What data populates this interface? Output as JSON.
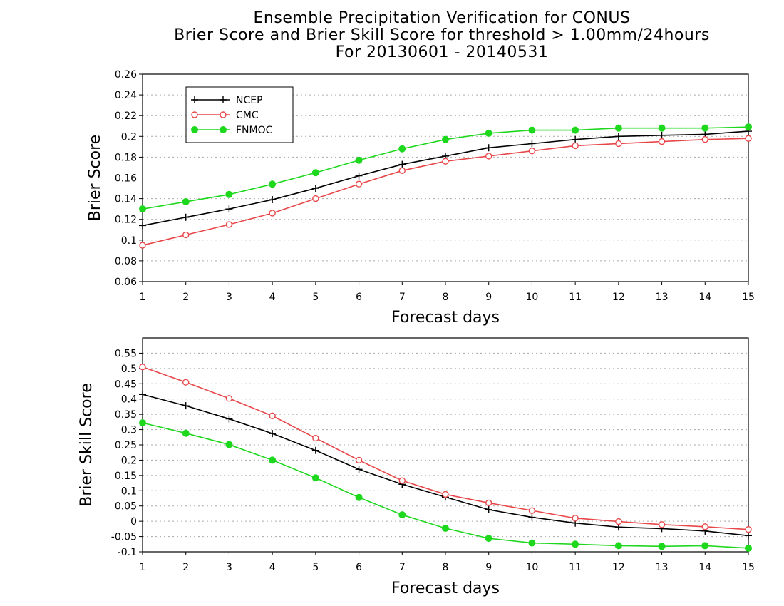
{
  "title": {
    "line1": "Ensemble Precipitation Verification for CONUS",
    "line2": "Brier Score and Brier Skill Score for threshold > 1.00mm/24hours",
    "line3": "For 20130601 - 20140531"
  },
  "colors": {
    "NCEP": "#000000",
    "CMC": "#e8474a",
    "FNMOC": "#1ed81e",
    "grid": "#aaaaaa"
  },
  "chart_data": [
    {
      "type": "line",
      "id": "brier-score",
      "xlabel": "Forecast days",
      "ylabel": "Brier Score",
      "x": [
        1,
        2,
        3,
        4,
        5,
        6,
        7,
        8,
        9,
        10,
        11,
        12,
        13,
        14,
        15
      ],
      "xlim": [
        1,
        15
      ],
      "ylim": [
        0.06,
        0.26
      ],
      "yticks": [
        0.06,
        0.08,
        0.1,
        0.12,
        0.14,
        0.16,
        0.18,
        0.2,
        0.22,
        0.24,
        0.26
      ],
      "ytick_labels": [
        "0.06",
        "0.08",
        "0.1",
        "0.12",
        "0.14",
        "0.16",
        "0.18",
        "0.2",
        "0.22",
        "0.24",
        "0.26"
      ],
      "grid": true,
      "legend": "top-left",
      "series": [
        {
          "name": "NCEP",
          "marker": "plus",
          "values": [
            0.114,
            0.122,
            0.13,
            0.139,
            0.15,
            0.162,
            0.173,
            0.181,
            0.189,
            0.193,
            0.197,
            0.2,
            0.201,
            0.202,
            0.205
          ]
        },
        {
          "name": "CMC",
          "marker": "open-circle",
          "values": [
            0.095,
            0.105,
            0.115,
            0.126,
            0.14,
            0.154,
            0.167,
            0.176,
            0.181,
            0.186,
            0.191,
            0.193,
            0.195,
            0.197,
            0.198
          ]
        },
        {
          "name": "FNMOC",
          "marker": "filled-circle",
          "values": [
            0.13,
            0.137,
            0.144,
            0.154,
            0.165,
            0.177,
            0.188,
            0.197,
            0.203,
            0.206,
            0.206,
            0.208,
            0.208,
            0.208,
            0.209
          ]
        }
      ]
    },
    {
      "type": "line",
      "id": "brier-skill-score",
      "xlabel": "Forecast days",
      "ylabel": "Brier Skill Score",
      "x": [
        1,
        2,
        3,
        4,
        5,
        6,
        7,
        8,
        9,
        10,
        11,
        12,
        13,
        14,
        15
      ],
      "xlim": [
        1,
        15
      ],
      "ylim": [
        -0.1,
        0.6
      ],
      "yticks": [
        -0.1,
        -0.05,
        0,
        0.05,
        0.1,
        0.15,
        0.2,
        0.25,
        0.3,
        0.35,
        0.4,
        0.45,
        0.5,
        0.55
      ],
      "ytick_labels": [
        "-0.1",
        "-0.05",
        "0",
        "0.05",
        "0.1",
        "0.15",
        "0.2",
        "0.25",
        "0.3",
        "0.35",
        "0.4",
        "0.45",
        "0.5",
        "0.55"
      ],
      "grid": true,
      "series": [
        {
          "name": "NCEP",
          "marker": "plus",
          "values": [
            0.415,
            0.378,
            0.335,
            0.287,
            0.232,
            0.17,
            0.121,
            0.079,
            0.038,
            0.013,
            -0.006,
            -0.019,
            -0.024,
            -0.032,
            -0.047
          ]
        },
        {
          "name": "CMC",
          "marker": "open-circle",
          "values": [
            0.505,
            0.455,
            0.402,
            0.345,
            0.272,
            0.2,
            0.133,
            0.088,
            0.06,
            0.035,
            0.01,
            -0.001,
            -0.011,
            -0.018,
            -0.027
          ]
        },
        {
          "name": "FNMOC",
          "marker": "filled-circle",
          "values": [
            0.322,
            0.288,
            0.251,
            0.2,
            0.142,
            0.078,
            0.021,
            -0.023,
            -0.056,
            -0.071,
            -0.075,
            -0.08,
            -0.082,
            -0.08,
            -0.088
          ]
        }
      ]
    }
  ]
}
